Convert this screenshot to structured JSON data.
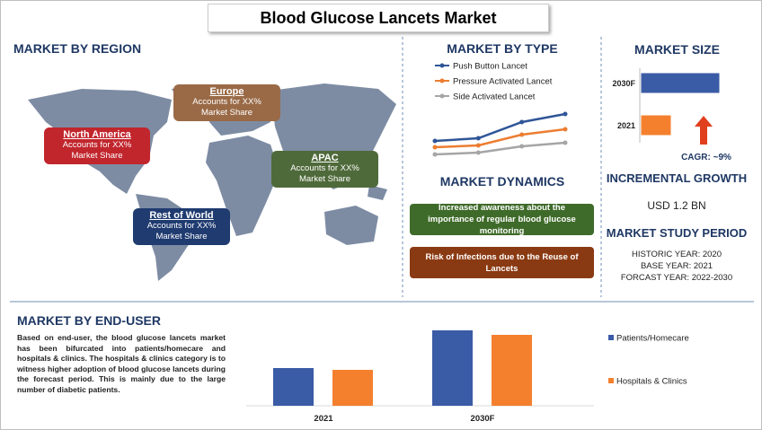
{
  "title": "Blood Glucose Lancets Market",
  "region": {
    "heading": "MARKET BY REGION",
    "regions": [
      {
        "name": "Europe",
        "lines": [
          "Accounts for XX%",
          "Market Share"
        ],
        "color": "#9a6a47"
      },
      {
        "name": "North America",
        "lines": [
          "Accounts for XX%",
          "Market Share"
        ],
        "color": "#c1262d"
      },
      {
        "name": "APAC",
        "lines": [
          "Accounts for XX%",
          "Market Share"
        ],
        "color": "#4f6a3a"
      },
      {
        "name": "Rest of World",
        "lines": [
          "Accounts for XX%",
          "Market Share"
        ],
        "color": "#1f3b70"
      }
    ]
  },
  "market_type": {
    "heading": "MARKET BY TYPE",
    "series": [
      {
        "name": "Push Button Lancet",
        "color": "#2f5597",
        "values": [
          19,
          22,
          40,
          49
        ]
      },
      {
        "name": "Pressure Activated Lancet",
        "color": "#ed7d31",
        "values": [
          12,
          14,
          26,
          32
        ]
      },
      {
        "name": "Side Activated Lancet",
        "color": "#a5a5a5",
        "values": [
          4,
          6,
          13,
          17
        ]
      }
    ]
  },
  "dynamics": {
    "heading": "MARKET DYNAMICS",
    "items": [
      {
        "text": "Increased awareness about the importance of regular blood glucose monitoring",
        "color": "#3f6b2a"
      },
      {
        "text": "Risk of Infections due to the Reuse of Lancets",
        "color": "#8a3a12"
      }
    ]
  },
  "market_size": {
    "heading": "MARKET SIZE",
    "categories": [
      "2030F",
      "2021"
    ],
    "values": [
      88,
      34
    ],
    "colors": [
      "#3a5ba5",
      "#f4802e"
    ],
    "cagr": "CAGR: ~9%"
  },
  "growth": {
    "heading": "INCREMENTAL GROWTH",
    "value": "USD 1.2 BN"
  },
  "period": {
    "heading": "MARKET STUDY PERIOD",
    "lines": [
      "HISTORIC YEAR: 2020",
      "BASE YEAR: 2021",
      "FORCAST YEAR: 2022-2030"
    ]
  },
  "end_user": {
    "heading": "MARKET BY END-USER",
    "text": "Based on end-user, the blood glucose lancets market has been bifurcated into patients/homecare and hospitals & clinics. The hospitals & clinics category is to witness higher adoption of blood glucose lancets during the forecast period. This is mainly due to the large number of diabetic patients.",
    "categories": [
      "2021",
      "2030F"
    ],
    "series": [
      {
        "name": "Patients/Homecare",
        "color": "#3a5ba5",
        "values": [
          42,
          84
        ]
      },
      {
        "name": "Hospitals & Clinics",
        "color": "#f4802e",
        "values": [
          40,
          79
        ]
      }
    ]
  }
}
